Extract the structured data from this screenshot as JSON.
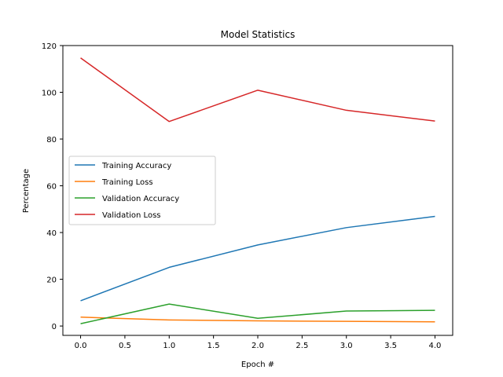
{
  "chart_data": {
    "type": "line",
    "title": "Model Statistics",
    "xlabel": "Epoch #",
    "ylabel": "Percentage",
    "x": [
      0,
      1,
      2,
      3,
      4
    ],
    "xlim": [
      -0.2,
      4.2
    ],
    "ylim": [
      -4.0,
      120.0
    ],
    "xticks": [
      0.0,
      0.5,
      1.0,
      1.5,
      2.0,
      2.5,
      3.0,
      3.5,
      4.0
    ],
    "xtick_labels": [
      "0.0",
      "0.5",
      "1.0",
      "1.5",
      "2.0",
      "2.5",
      "3.0",
      "3.5",
      "4.0"
    ],
    "yticks": [
      0,
      20,
      40,
      60,
      80,
      100,
      120
    ],
    "ytick_labels": [
      "0",
      "20",
      "40",
      "60",
      "80",
      "100",
      "120"
    ],
    "grid": false,
    "legend": "center-left",
    "series": [
      {
        "name": "Training Accuracy",
        "color": "#1f77b4",
        "values": [
          10.8,
          25.1,
          34.7,
          42.1,
          46.9
        ]
      },
      {
        "name": "Training Loss",
        "color": "#ff7f0e",
        "values": [
          3.8,
          2.6,
          2.2,
          2.0,
          1.8
        ]
      },
      {
        "name": "Validation Accuracy",
        "color": "#2ca02c",
        "values": [
          1.0,
          9.4,
          3.3,
          6.4,
          6.7
        ]
      },
      {
        "name": "Validation Loss",
        "color": "#d62728",
        "values": [
          114.7,
          87.5,
          100.9,
          92.3,
          87.7
        ]
      }
    ]
  }
}
